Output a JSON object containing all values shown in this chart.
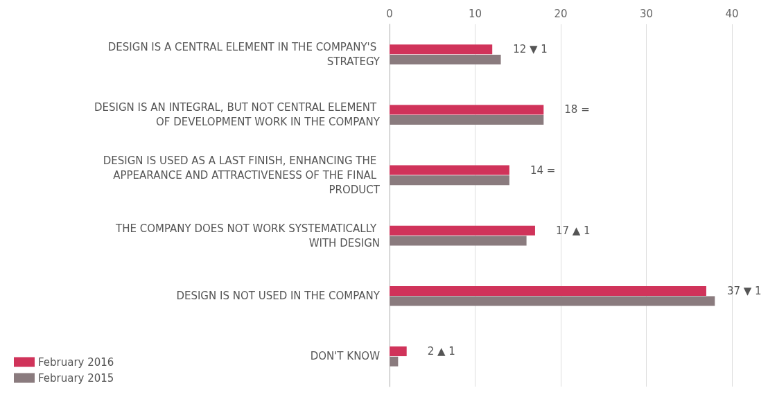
{
  "chart_data": {
    "type": "bar",
    "orientation": "horizontal",
    "categories": [
      "DESIGN IS A CENTRAL ELEMENT IN THE COMPANY'S STRATEGY",
      "DESIGN IS AN INTEGRAL, BUT NOT CENTRAL ELEMENT OF DEVELOPMENT WORK IN THE COMPANY",
      "DESIGN IS USED AS A LAST FINISH, ENHANCING THE APPEARANCE AND ATTRACTIVENESS OF THE FINAL PRODUCT",
      "THE COMPANY DOES NOT WORK SYSTEMATICALLY WITH DESIGN",
      "DESIGN IS NOT USED IN THE COMPANY",
      "DON'T KNOW"
    ],
    "series": [
      {
        "name": "February 2016",
        "color": "#d0335a",
        "values": [
          12,
          18,
          14,
          17,
          37,
          2
        ],
        "value_labels": [
          "12 ▼ 1",
          "18 =",
          "14 =",
          "17 ▲ 1",
          "37 ▼ 1",
          "2 ▲ 1"
        ]
      },
      {
        "name": "February 2015",
        "color": "#8a7b7e",
        "values": [
          13,
          18,
          14,
          16,
          38,
          1
        ]
      }
    ],
    "xlim": [
      0,
      40
    ],
    "xticks": [
      0,
      10,
      20,
      30,
      40
    ],
    "grid": "x",
    "legend": "bottom left"
  }
}
